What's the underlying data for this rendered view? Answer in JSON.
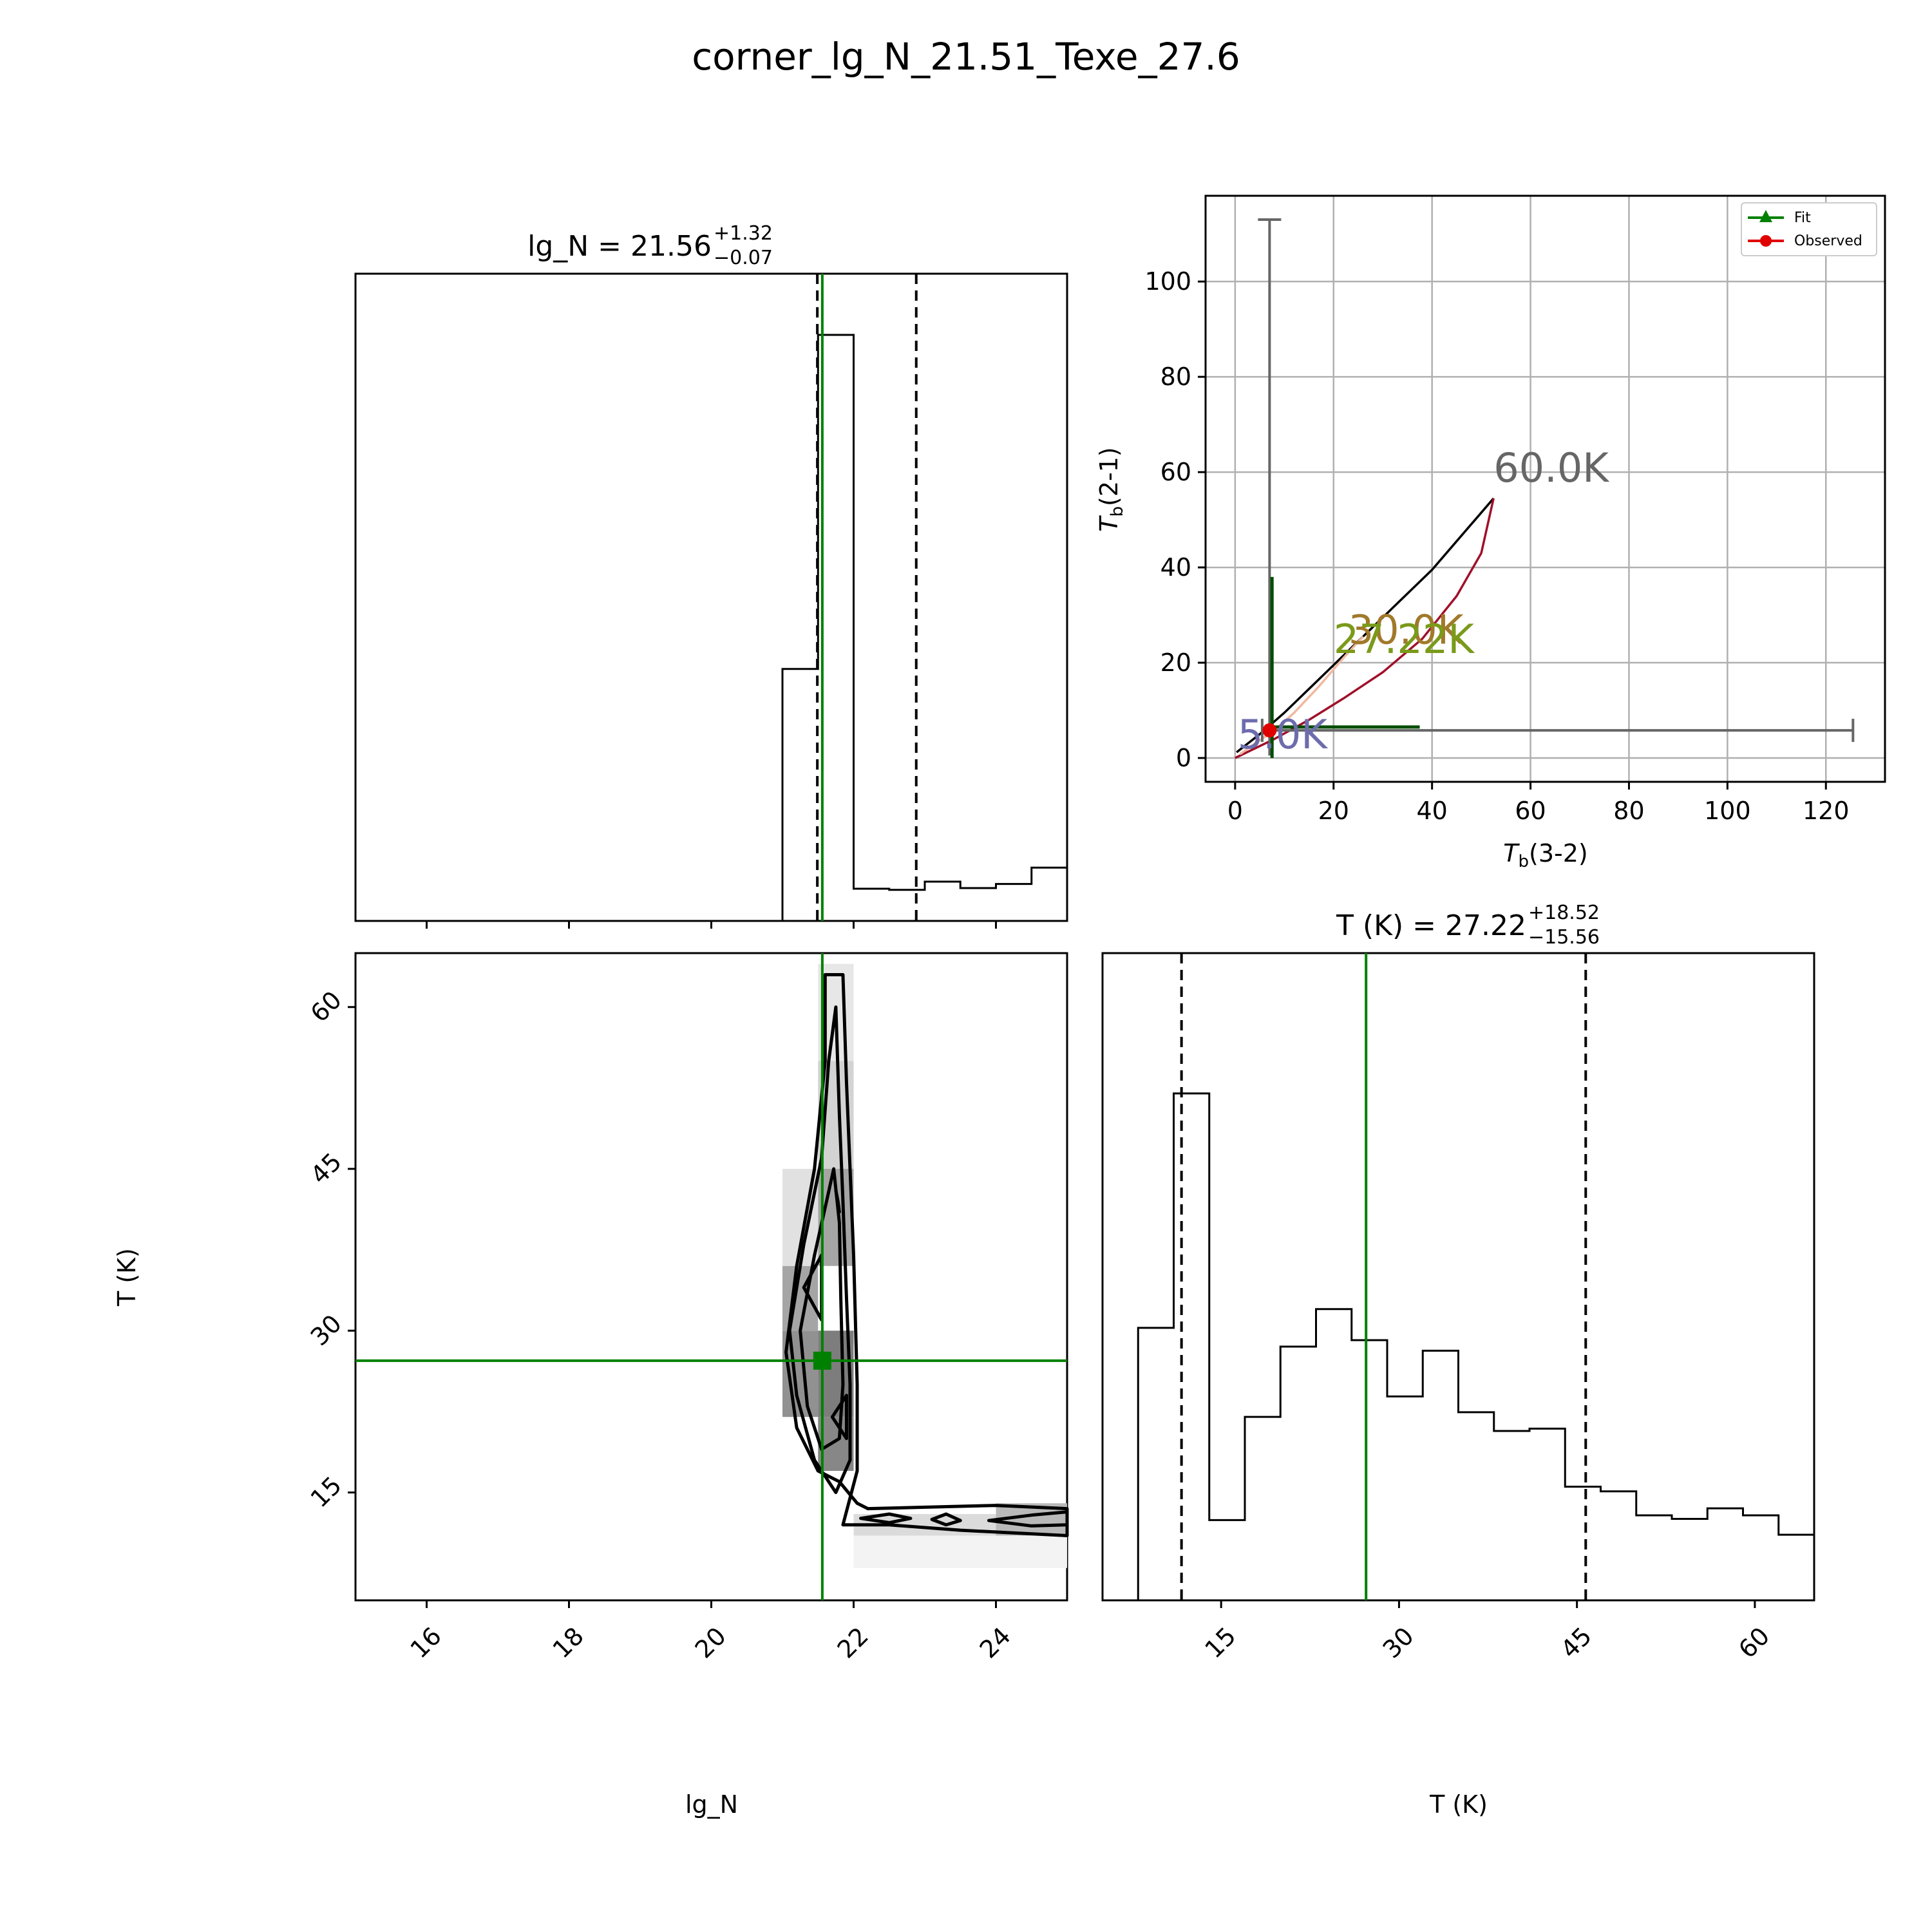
{
  "page": {
    "title": "corner_lg_N_21.51_Texe_27.6"
  },
  "chart_data": [
    {
      "type": "histogram",
      "panel": "top-left",
      "param": "lg_N",
      "title": {
        "name": "lg_N",
        "value": "21.56",
        "plus": "+1.32",
        "minus": "−0.07"
      },
      "xlim": [
        15,
        25
      ],
      "bins": [
        {
          "x0": 20.0,
          "x1": 21.0,
          "height": 0.0
        },
        {
          "x0": 21.0,
          "x1": 21.5,
          "height": 0.43
        },
        {
          "x0": 21.5,
          "x1": 22.0,
          "height": 1.0
        },
        {
          "x0": 22.0,
          "x1": 22.5,
          "height": 0.055
        },
        {
          "x0": 22.5,
          "x1": 23.0,
          "height": 0.053
        },
        {
          "x0": 23.0,
          "x1": 23.5,
          "height": 0.067
        },
        {
          "x0": 23.5,
          "x1": 24.0,
          "height": 0.056
        },
        {
          "x0": 24.0,
          "x1": 24.5,
          "height": 0.063
        },
        {
          "x0": 24.5,
          "x1": 25.0,
          "height": 0.091
        }
      ],
      "quantiles": [
        21.49,
        22.88
      ],
      "truth": 21.56
    },
    {
      "type": "contour",
      "panel": "bottom-left",
      "xlabel": "lg_N",
      "ylabel": "T (K)",
      "xlim": [
        15,
        25
      ],
      "ylim": [
        5,
        65
      ],
      "xticks": [
        "16",
        "18",
        "20",
        "22",
        "24"
      ],
      "yticks": [
        "15",
        "30",
        "45",
        "60"
      ],
      "truth": {
        "x": 21.56,
        "y": 27.22
      },
      "contours": [
        [
          [
            21.85,
            63
          ],
          [
            21.9,
            53
          ],
          [
            21.95,
            45
          ],
          [
            22.0,
            37
          ],
          [
            22.05,
            25
          ],
          [
            22.05,
            17
          ],
          [
            21.85,
            12
          ],
          [
            22.5,
            12
          ],
          [
            23.5,
            11.5
          ],
          [
            25,
            11
          ],
          [
            25,
            13.5
          ],
          [
            24,
            13.8
          ],
          [
            22.2,
            13.5
          ],
          [
            22.05,
            14
          ],
          [
            21.8,
            16
          ],
          [
            21.5,
            17
          ],
          [
            21.2,
            21
          ],
          [
            21.05,
            28
          ],
          [
            21.2,
            36
          ],
          [
            21.45,
            45
          ],
          [
            21.6,
            55
          ],
          [
            21.6,
            63
          ]
        ],
        [
          [
            21.75,
            60
          ],
          [
            21.8,
            50
          ],
          [
            21.85,
            42
          ],
          [
            21.9,
            33
          ],
          [
            21.95,
            25
          ],
          [
            21.95,
            18
          ],
          [
            21.75,
            15
          ],
          [
            21.45,
            18
          ],
          [
            21.2,
            24
          ],
          [
            21.1,
            30
          ],
          [
            21.3,
            38
          ],
          [
            21.55,
            46
          ],
          [
            21.65,
            55
          ]
        ],
        [
          [
            21.72,
            45
          ],
          [
            21.8,
            40
          ],
          [
            21.82,
            33
          ],
          [
            21.85,
            25
          ],
          [
            21.8,
            20
          ],
          [
            21.55,
            19
          ],
          [
            21.35,
            23
          ],
          [
            21.25,
            30
          ],
          [
            21.45,
            37
          ],
          [
            21.62,
            42
          ]
        ],
        [
          [
            21.3,
            34
          ],
          [
            21.55,
            31
          ],
          [
            21.55,
            37
          ]
        ],
        [
          [
            21.9,
            24
          ],
          [
            21.9,
            20
          ],
          [
            21.7,
            22
          ]
        ],
        [
          [
            21.75,
            43
          ],
          [
            21.8,
            41
          ],
          [
            21.78,
            42
          ]
        ],
        [
          [
            23.1,
            12.5
          ],
          [
            23.3,
            13.0
          ],
          [
            23.5,
            12.4
          ],
          [
            23.3,
            12.0
          ]
        ],
        [
          [
            22.1,
            12.6
          ],
          [
            22.5,
            13.0
          ],
          [
            22.8,
            12.6
          ],
          [
            22.5,
            12.2
          ]
        ],
        [
          [
            23.9,
            12.4
          ],
          [
            24.5,
            12.9
          ],
          [
            25,
            13.2
          ],
          [
            25,
            12.0
          ],
          [
            24.5,
            11.9
          ]
        ]
      ],
      "density": [
        {
          "x0": 21.0,
          "x1": 21.5,
          "y0": 30,
          "y1": 36,
          "level": 0.45
        },
        {
          "x0": 21.0,
          "x1": 21.5,
          "y0": 22,
          "y1": 30,
          "level": 0.55
        },
        {
          "x0": 21.5,
          "x1": 22.0,
          "y0": 22,
          "y1": 30,
          "level": 0.65
        },
        {
          "x0": 21.5,
          "x1": 22.0,
          "y0": 17,
          "y1": 22,
          "level": 0.6
        },
        {
          "x0": 21.5,
          "x1": 22.0,
          "y0": 36,
          "y1": 45,
          "level": 0.45
        },
        {
          "x0": 21.5,
          "x1": 22.0,
          "y0": 45,
          "y1": 55,
          "level": 0.22
        },
        {
          "x0": 21.5,
          "x1": 22.0,
          "y0": 55,
          "y1": 64,
          "level": 0.12
        },
        {
          "x0": 21.0,
          "x1": 21.5,
          "y0": 36,
          "y1": 45,
          "level": 0.15
        },
        {
          "x0": 24.0,
          "x1": 25.0,
          "y0": 11,
          "y1": 14,
          "level": 0.35
        },
        {
          "x0": 22.0,
          "x1": 24.0,
          "y0": 11,
          "y1": 13,
          "level": 0.18
        },
        {
          "x0": 22.0,
          "x1": 25.0,
          "y0": 8,
          "y1": 11,
          "level": 0.06
        }
      ]
    },
    {
      "type": "histogram",
      "panel": "bottom-right",
      "param": "T (K)",
      "xlabel": "T (K)",
      "title": {
        "name": "T (K)",
        "value": "27.22",
        "plus": "+18.52",
        "minus": "−15.56"
      },
      "xlim": [
        5,
        65
      ],
      "xticks": [
        "15",
        "30",
        "45",
        "60"
      ],
      "bins": [
        {
          "x0": 5.0,
          "x1": 8.0,
          "height": 0.0
        },
        {
          "x0": 8.0,
          "x1": 11.0,
          "height": 0.465
        },
        {
          "x0": 11.0,
          "x1": 14.0,
          "height": 0.865
        },
        {
          "x0": 14.0,
          "x1": 17.0,
          "height": 0.137
        },
        {
          "x0": 17.0,
          "x1": 20.0,
          "height": 0.313
        },
        {
          "x0": 20.0,
          "x1": 23.0,
          "height": 0.433
        },
        {
          "x0": 23.0,
          "x1": 26.0,
          "height": 0.497
        },
        {
          "x0": 26.0,
          "x1": 29.0,
          "height": 0.444
        },
        {
          "x0": 29.0,
          "x1": 32.0,
          "height": 0.348
        },
        {
          "x0": 32.0,
          "x1": 35.0,
          "height": 0.426
        },
        {
          "x0": 35.0,
          "x1": 38.0,
          "height": 0.321
        },
        {
          "x0": 38.0,
          "x1": 41.0,
          "height": 0.289
        },
        {
          "x0": 41.0,
          "x1": 44.0,
          "height": 0.293
        },
        {
          "x0": 44.0,
          "x1": 47.0,
          "height": 0.194
        },
        {
          "x0": 47.0,
          "x1": 50.0,
          "height": 0.186
        },
        {
          "x0": 50.0,
          "x1": 53.0,
          "height": 0.145
        },
        {
          "x0": 53.0,
          "x1": 56.0,
          "height": 0.139
        },
        {
          "x0": 56.0,
          "x1": 59.0,
          "height": 0.157
        },
        {
          "x0": 59.0,
          "x1": 62.0,
          "height": 0.145
        },
        {
          "x0": 62.0,
          "x1": 65.0,
          "height": 0.112
        }
      ],
      "quantiles": [
        11.66,
        45.74
      ],
      "truth": 27.22
    },
    {
      "type": "line",
      "panel": "top-right",
      "xlabel": "T",
      "xlabel_sub": "b",
      "xlabel_suffix": "(3-2)",
      "ylabel": "T",
      "ylabel_sub": "b",
      "ylabel_suffix": "(2-1)",
      "xlim": [
        -6,
        132
      ],
      "ylim": [
        -5,
        118
      ],
      "xticks": [
        0,
        20,
        40,
        60,
        80,
        100,
        120
      ],
      "yticks": [
        0,
        20,
        40,
        60,
        80,
        100
      ],
      "grid": true,
      "legend": {
        "position": "top-right",
        "entries": [
          "Fit",
          "Observed"
        ]
      },
      "series": [
        {
          "role": "fit",
          "color": "#000000",
          "x": [
            0.3,
            5,
            10,
            20,
            30,
            40,
            52.5
          ],
          "y": [
            1.2,
            5,
            9.5,
            19.5,
            29.5,
            39.5,
            54.5
          ]
        },
        {
          "role": "curve",
          "color": "#a0102a",
          "x": [
            0,
            8,
            15,
            22,
            30,
            38,
            45,
            50,
            52.5
          ],
          "y": [
            0,
            4,
            8,
            12.5,
            18,
            25,
            34,
            43,
            54.5
          ]
        },
        {
          "role": "curve",
          "color": "#f0b8a0",
          "x": [
            1,
            4,
            8,
            12,
            17,
            22,
            26
          ],
          "y": [
            0.8,
            3.0,
            5.8,
            9.5,
            15,
            21,
            25.5
          ]
        }
      ],
      "observed": {
        "x": 7.0,
        "y": 5.8,
        "xerr": [
          5.5,
          125.5
        ],
        "yerr": [
          0.5,
          113
        ]
      },
      "fit_point": {
        "x": 7.5,
        "y": 6.5,
        "xerr": [
          7.5,
          37.5
        ],
        "yerr": [
          6.5,
          38
        ]
      },
      "annotations": [
        {
          "text": "60.0K",
          "x": 52.5,
          "y": 58,
          "color": "#666666"
        },
        {
          "text": "30.0K",
          "x": 23,
          "y": 24,
          "color": "#a0792a"
        },
        {
          "text": "27.22K",
          "x": 20,
          "y": 22,
          "color": "#7a9a1a"
        },
        {
          "text": "5.0K",
          "x": 0.5,
          "y": 2,
          "color": "#6c6cad"
        }
      ]
    }
  ]
}
